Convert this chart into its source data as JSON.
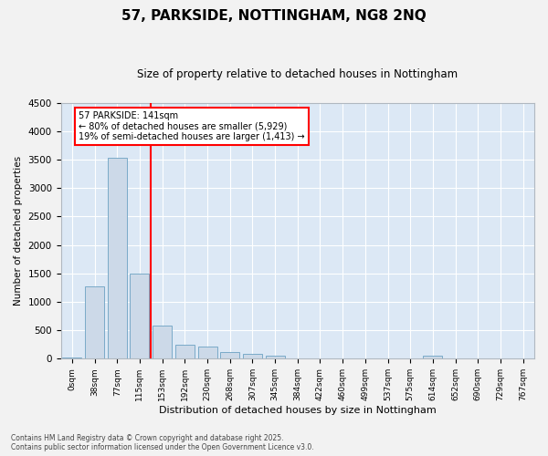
{
  "title": "57, PARKSIDE, NOTTINGHAM, NG8 2NQ",
  "subtitle": "Size of property relative to detached houses in Nottingham",
  "xlabel": "Distribution of detached houses by size in Nottingham",
  "ylabel": "Number of detached properties",
  "bar_color": "#ccd9e8",
  "bar_edge_color": "#7aaac8",
  "background_color": "#dce8f5",
  "grid_color": "#ffffff",
  "bins": [
    "0sqm",
    "38sqm",
    "77sqm",
    "115sqm",
    "153sqm",
    "192sqm",
    "230sqm",
    "268sqm",
    "307sqm",
    "345sqm",
    "384sqm",
    "422sqm",
    "460sqm",
    "499sqm",
    "537sqm",
    "575sqm",
    "614sqm",
    "652sqm",
    "690sqm",
    "729sqm",
    "767sqm"
  ],
  "values": [
    25,
    1270,
    3530,
    1500,
    580,
    240,
    215,
    120,
    80,
    50,
    10,
    5,
    5,
    5,
    5,
    5,
    50,
    5,
    5,
    5,
    5
  ],
  "vline_x": 3,
  "annotation_title": "57 PARKSIDE: 141sqm",
  "annotation_line1": "← 80% of detached houses are smaller (5,929)",
  "annotation_line2": "19% of semi-detached houses are larger (1,413) →",
  "footnote1": "Contains HM Land Registry data © Crown copyright and database right 2025.",
  "footnote2": "Contains public sector information licensed under the Open Government Licence v3.0.",
  "ylim": [
    0,
    4500
  ],
  "yticks": [
    0,
    500,
    1000,
    1500,
    2000,
    2500,
    3000,
    3500,
    4000,
    4500
  ],
  "fig_bg": "#f2f2f2"
}
